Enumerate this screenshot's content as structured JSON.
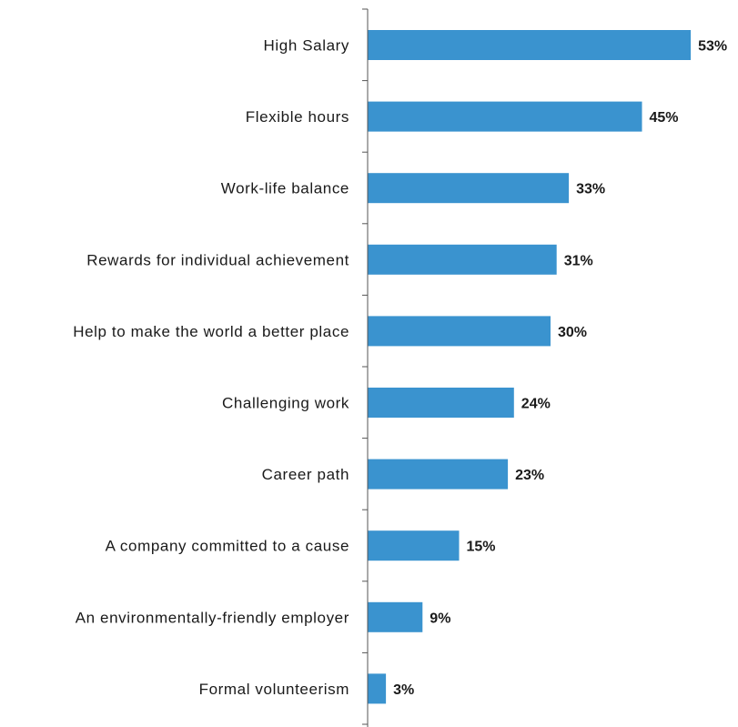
{
  "chart_data": {
    "type": "bar",
    "orientation": "horizontal",
    "categories": [
      "High Salary",
      "Flexible hours",
      "Work-life balance",
      "Rewards for individual achievement",
      "Help to make the world a better place",
      "Challenging work",
      "Career path",
      "A company committed to a cause",
      "An environmentally-friendly employer",
      "Formal volunteerism"
    ],
    "values": [
      53,
      45,
      33,
      31,
      30,
      24,
      23,
      15,
      9,
      3
    ],
    "value_labels": [
      "53%",
      "45%",
      "33%",
      "31%",
      "30%",
      "24%",
      "23%",
      "15%",
      "9%",
      "3%"
    ],
    "unit": "%",
    "title": "",
    "xlabel": "",
    "ylabel": "",
    "xlim": [
      0,
      55
    ],
    "grid": false,
    "legend": "none",
    "colors": {
      "bar": "#3a93cf",
      "axis": "#555555",
      "text": "#1a1a1a"
    }
  }
}
